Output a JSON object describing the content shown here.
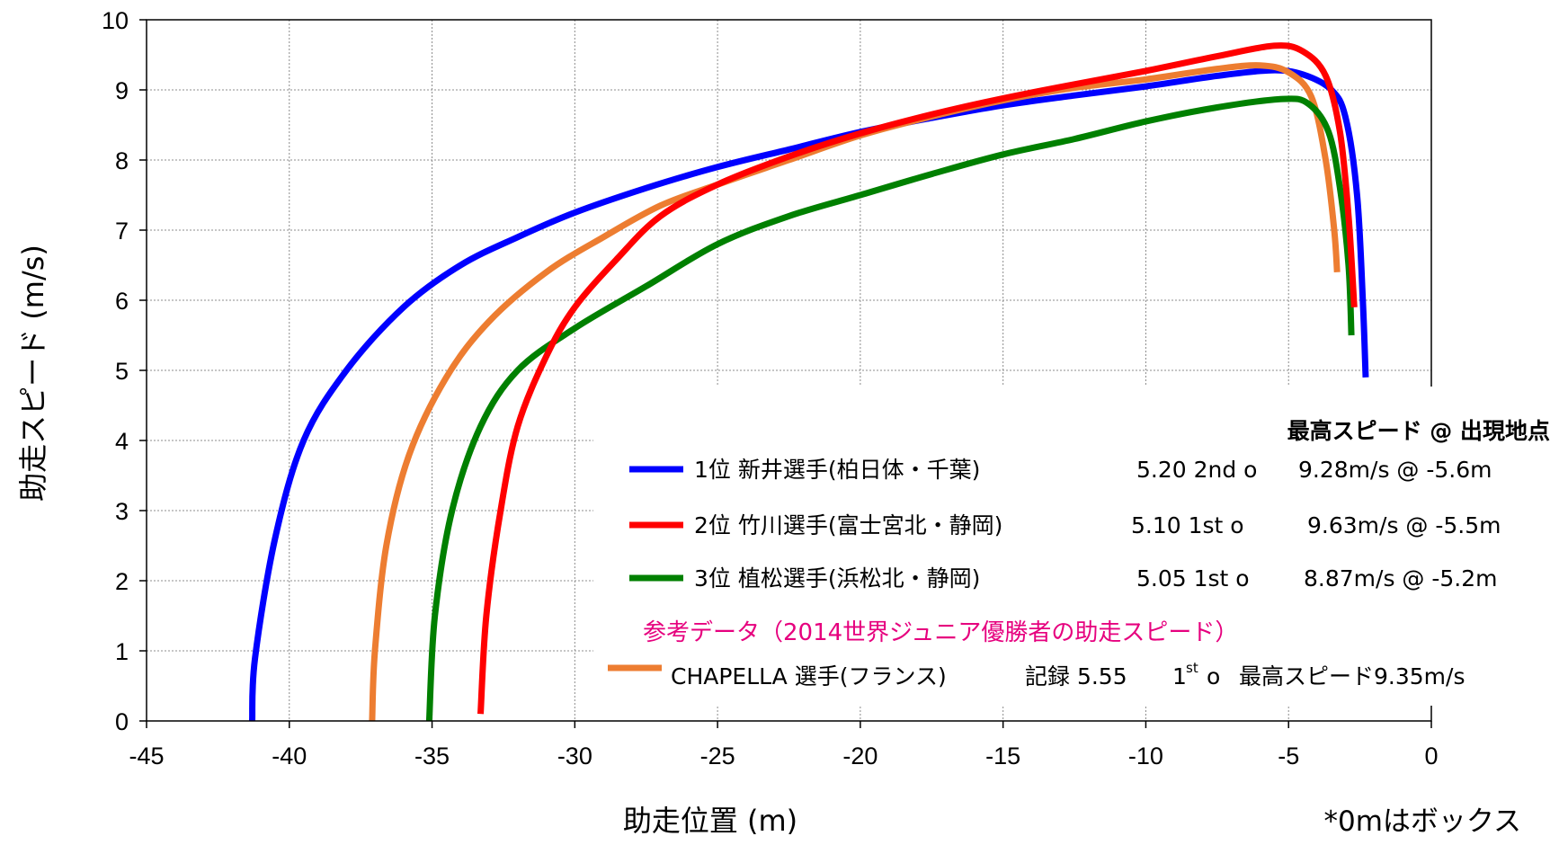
{
  "chart_data": {
    "type": "line",
    "xlabel": "助走位置 (m)",
    "ylabel": "助走スピード (m/s)",
    "xlim": [
      -45,
      0
    ],
    "ylim": [
      0,
      10
    ],
    "xticks": [
      -45,
      -40,
      -35,
      -30,
      -25,
      -20,
      -15,
      -10,
      -5,
      0
    ],
    "yticks": [
      0,
      1,
      2,
      3,
      4,
      5,
      6,
      7,
      8,
      9,
      10
    ],
    "grid": true,
    "legend_placement": "lower-right",
    "note": "*0mはボックス",
    "legend_header": "最高スピード @ 出現地点",
    "reference_label": "参考データ（2014世界ジュニア優勝者の助走スピード）",
    "series": [
      {
        "name": "1位 新井選手(柏日体・千葉)",
        "color": "#0000ff",
        "record": "5.20 2nd o",
        "peak": "9.28m/s @ -5.6m",
        "points": [
          [
            -41.3,
            0
          ],
          [
            -41.2,
            0.9
          ],
          [
            -40.5,
            2.6
          ],
          [
            -39.5,
            4.0
          ],
          [
            -38.0,
            5.0
          ],
          [
            -36.0,
            5.9
          ],
          [
            -34.0,
            6.5
          ],
          [
            -32.0,
            6.9
          ],
          [
            -30.0,
            7.25
          ],
          [
            -27.5,
            7.6
          ],
          [
            -25.0,
            7.9
          ],
          [
            -22.5,
            8.15
          ],
          [
            -20.0,
            8.4
          ],
          [
            -17.5,
            8.6
          ],
          [
            -15.0,
            8.78
          ],
          [
            -12.5,
            8.92
          ],
          [
            -10.0,
            9.05
          ],
          [
            -7.5,
            9.2
          ],
          [
            -5.6,
            9.28
          ],
          [
            -4.5,
            9.22
          ],
          [
            -3.5,
            9.0
          ],
          [
            -3.0,
            8.6
          ],
          [
            -2.6,
            7.5
          ],
          [
            -2.4,
            6.0
          ],
          [
            -2.3,
            4.9
          ]
        ]
      },
      {
        "name": "2位 竹川選手(富士宮北・静岡)",
        "color": "#ff0000",
        "record": "5.10 1st o",
        "peak": "9.63m/s @ -5.5m",
        "points": [
          [
            -33.3,
            0.1
          ],
          [
            -33.1,
            1.5
          ],
          [
            -32.6,
            3.0
          ],
          [
            -32.0,
            4.2
          ],
          [
            -31.0,
            5.2
          ],
          [
            -30.0,
            5.9
          ],
          [
            -28.5,
            6.6
          ],
          [
            -27.0,
            7.2
          ],
          [
            -25.0,
            7.65
          ],
          [
            -22.5,
            8.05
          ],
          [
            -20.0,
            8.38
          ],
          [
            -17.5,
            8.65
          ],
          [
            -15.0,
            8.88
          ],
          [
            -12.5,
            9.08
          ],
          [
            -10.0,
            9.27
          ],
          [
            -7.5,
            9.48
          ],
          [
            -5.5,
            9.63
          ],
          [
            -4.5,
            9.55
          ],
          [
            -3.7,
            9.2
          ],
          [
            -3.2,
            8.4
          ],
          [
            -2.9,
            7.2
          ],
          [
            -2.7,
            5.9
          ]
        ]
      },
      {
        "name": "3位 植松選手(浜松北・静岡)",
        "color": "#008000",
        "record": "5.05 1st o",
        "peak": "8.87m/s @ -5.2m",
        "points": [
          [
            -35.1,
            0
          ],
          [
            -34.9,
            1.5
          ],
          [
            -34.3,
            3.0
          ],
          [
            -33.3,
            4.2
          ],
          [
            -32.0,
            5.0
          ],
          [
            -30.0,
            5.6
          ],
          [
            -27.5,
            6.2
          ],
          [
            -25.0,
            6.8
          ],
          [
            -22.5,
            7.2
          ],
          [
            -20.0,
            7.5
          ],
          [
            -17.5,
            7.8
          ],
          [
            -15.0,
            8.08
          ],
          [
            -12.5,
            8.3
          ],
          [
            -10.0,
            8.55
          ],
          [
            -7.5,
            8.75
          ],
          [
            -5.2,
            8.87
          ],
          [
            -4.3,
            8.8
          ],
          [
            -3.6,
            8.4
          ],
          [
            -3.2,
            7.6
          ],
          [
            -2.9,
            6.5
          ],
          [
            -2.8,
            5.5
          ]
        ]
      },
      {
        "name": "CHAPELLA 選手(フランス)",
        "color": "#ed7d31",
        "record": "記録 5.55",
        "attempt": "1",
        "attempt_suffix": "st",
        "attempt_mark": "o",
        "peak": "最高スピード9.35m/s",
        "points": [
          [
            -37.1,
            0
          ],
          [
            -37.0,
            1.0
          ],
          [
            -36.6,
            2.5
          ],
          [
            -35.8,
            3.8
          ],
          [
            -34.5,
            4.9
          ],
          [
            -33.0,
            5.7
          ],
          [
            -31.0,
            6.4
          ],
          [
            -29.0,
            6.9
          ],
          [
            -27.0,
            7.35
          ],
          [
            -25.0,
            7.65
          ],
          [
            -22.5,
            8.0
          ],
          [
            -20.0,
            8.35
          ],
          [
            -17.5,
            8.62
          ],
          [
            -15.0,
            8.85
          ],
          [
            -12.5,
            9.03
          ],
          [
            -10.0,
            9.15
          ],
          [
            -7.5,
            9.3
          ],
          [
            -6.0,
            9.35
          ],
          [
            -5.0,
            9.25
          ],
          [
            -4.2,
            8.9
          ],
          [
            -3.7,
            8.0
          ],
          [
            -3.4,
            7.0
          ],
          [
            -3.3,
            6.4
          ]
        ]
      }
    ]
  }
}
